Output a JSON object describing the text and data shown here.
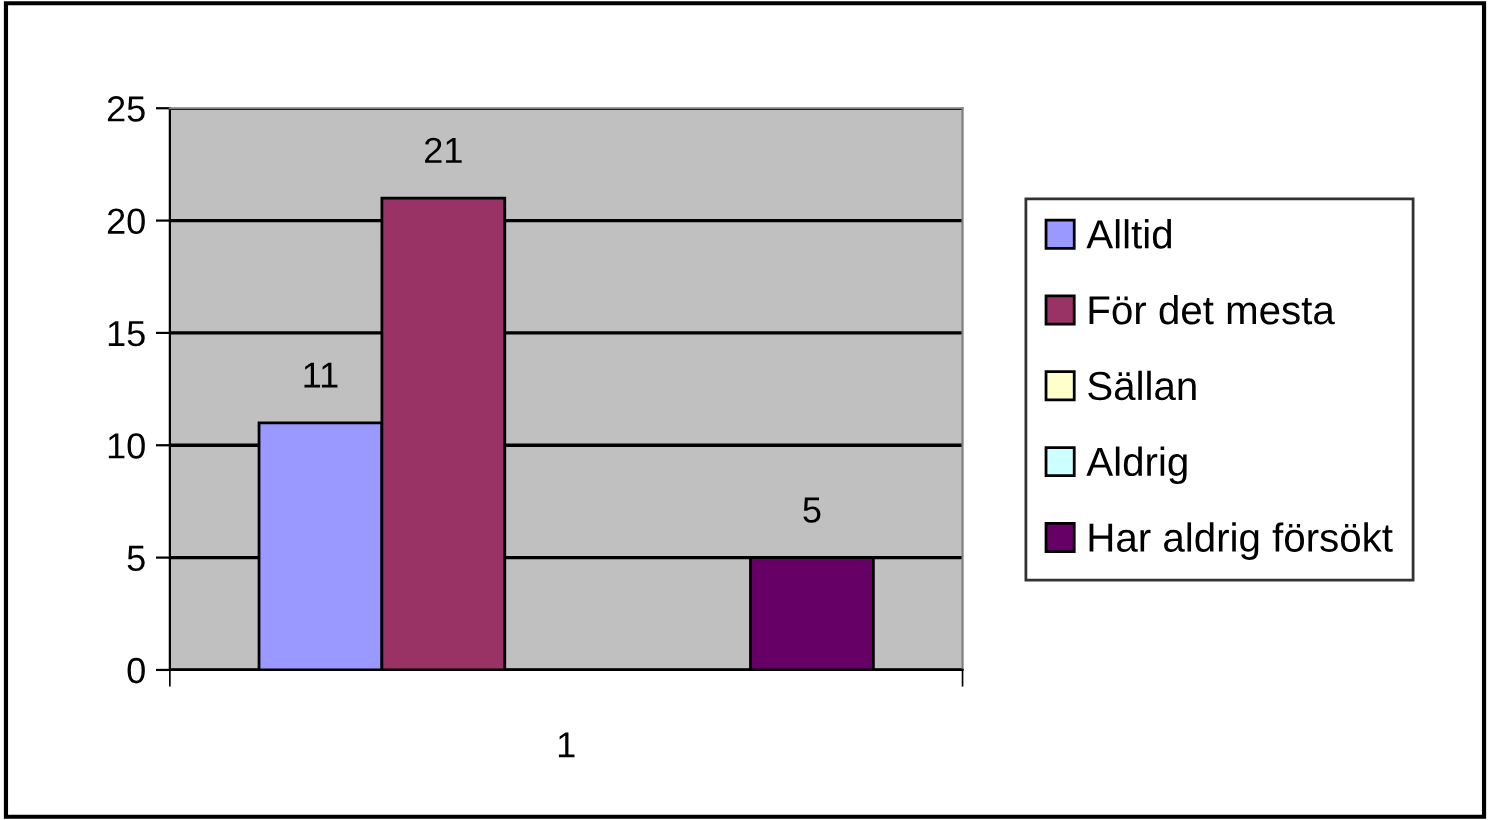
{
  "chart_data": {
    "type": "bar",
    "categories": [
      "1"
    ],
    "series": [
      {
        "name": "Alltid",
        "color": "#9999ff",
        "values": [
          11
        ],
        "value_labels": [
          "11"
        ]
      },
      {
        "name": "För det mesta",
        "color": "#993366",
        "values": [
          21
        ],
        "value_labels": [
          "21"
        ]
      },
      {
        "name": "Sällan",
        "color": "#ffffcc",
        "values": [
          0
        ],
        "value_labels": [
          null
        ]
      },
      {
        "name": "Aldrig",
        "color": "#ccffff",
        "values": [
          0
        ],
        "value_labels": [
          null
        ]
      },
      {
        "name": "Har aldrig försökt",
        "color": "#660066",
        "values": [
          5
        ],
        "value_labels": [
          "5"
        ]
      }
    ],
    "ylim": [
      0,
      25
    ],
    "yticks": [
      0,
      5,
      10,
      15,
      20,
      25
    ],
    "grid": "y",
    "legend": "right"
  }
}
